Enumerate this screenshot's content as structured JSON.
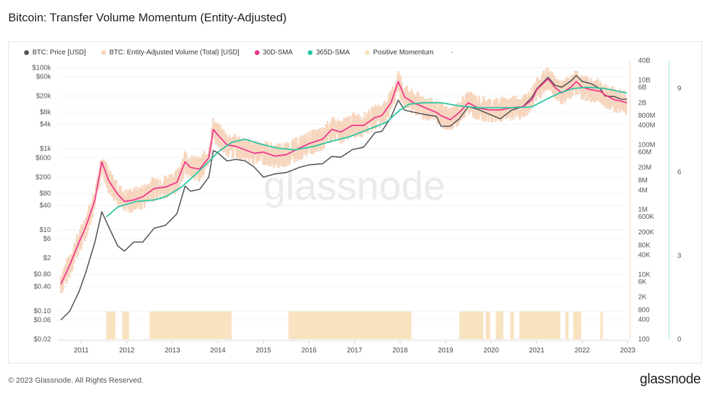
{
  "header": {
    "title": "Bitcoin: Transfer Volume Momentum (Entity-Adjusted)"
  },
  "footer": {
    "copyright": "© 2023 Glassnode. All Rights Reserved.",
    "brand": "glassnode"
  },
  "chart_data": {
    "type": "line",
    "title": "Bitcoin: Transfer Volume Momentum (Entity-Adjusted)",
    "watermark": "glassnode",
    "legend": {
      "placement": "top-left",
      "items": [
        {
          "label": "BTC: Price [USD]",
          "color": "#555555"
        },
        {
          "label": "BTC: Entity-Adjusted Volume (Total) [USD]",
          "color": "#f6d2b8"
        },
        {
          "label": "30D-SMA",
          "color": "#f0358c"
        },
        {
          "label": "365D-SMA",
          "color": "#26c6a2"
        },
        {
          "label": "Positive Momentum",
          "color": "#f8e2c0"
        }
      ],
      "extra": "-"
    },
    "x_axis": {
      "ticks": [
        "2011",
        "2012",
        "2013",
        "2014",
        "2015",
        "2016",
        "2017",
        "2018",
        "2019",
        "2020",
        "2021",
        "2022",
        "2023"
      ],
      "range": [
        2010.5,
        2023.0
      ]
    },
    "y_left": {
      "scale": "log",
      "unit": "USD",
      "range": [
        0.02,
        150000
      ],
      "ticks": [
        {
          "v": 100000,
          "label": "$100k"
        },
        {
          "v": 60000,
          "label": "$60k"
        },
        {
          "v": 20000,
          "label": "$20k"
        },
        {
          "v": 8000,
          "label": "$8k"
        },
        {
          "v": 4000,
          "label": "$4k"
        },
        {
          "v": 1000,
          "label": "$1k"
        },
        {
          "v": 600,
          "label": "$600"
        },
        {
          "v": 200,
          "label": "$200"
        },
        {
          "v": 80,
          "label": "$80"
        },
        {
          "v": 40,
          "label": "$40"
        },
        {
          "v": 10,
          "label": "$10"
        },
        {
          "v": 6,
          "label": "$6"
        },
        {
          "v": 2,
          "label": "$2"
        },
        {
          "v": 0.8,
          "label": "$0.80"
        },
        {
          "v": 0.4,
          "label": "$0.40"
        },
        {
          "v": 0.1,
          "label": "$0.10"
        },
        {
          "v": 0.06,
          "label": "$0.06"
        },
        {
          "v": 0.02,
          "label": "$0.02"
        }
      ]
    },
    "y_right": {
      "scale": "log",
      "unit": "USD",
      "range": [
        100,
        40000000000
      ],
      "ticks": [
        {
          "v": 40000000000,
          "label": "40B"
        },
        {
          "v": 10000000000,
          "label": "10B"
        },
        {
          "v": 6000000000,
          "label": "6B"
        },
        {
          "v": 2000000000,
          "label": "2B"
        },
        {
          "v": 800000000,
          "label": "800M"
        },
        {
          "v": 400000000,
          "label": "400M"
        },
        {
          "v": 100000000,
          "label": "100M"
        },
        {
          "v": 60000000,
          "label": "60M"
        },
        {
          "v": 20000000,
          "label": "20M"
        },
        {
          "v": 8000000,
          "label": "8M"
        },
        {
          "v": 4000000,
          "label": "4M"
        },
        {
          "v": 1000000,
          "label": "1M"
        },
        {
          "v": 600000,
          "label": "600K"
        },
        {
          "v": 200000,
          "label": "200K"
        },
        {
          "v": 80000,
          "label": "80K"
        },
        {
          "v": 40000,
          "label": "40K"
        },
        {
          "v": 10000,
          "label": "10K"
        },
        {
          "v": 6000,
          "label": "6K"
        },
        {
          "v": 2000,
          "label": "2K"
        },
        {
          "v": 800,
          "label": "800"
        },
        {
          "v": 400,
          "label": "400"
        },
        {
          "v": 100,
          "label": "100"
        }
      ]
    },
    "y_momentum": {
      "scale": "linear",
      "range": [
        0,
        10
      ],
      "ticks": [
        {
          "v": 9,
          "label": "9"
        },
        {
          "v": 6,
          "label": "6"
        },
        {
          "v": 3,
          "label": "3"
        },
        {
          "v": 0,
          "label": "0"
        }
      ]
    },
    "series": [
      {
        "name": "BTC: Price [USD]",
        "axis": "left",
        "color": "#555555",
        "points": [
          [
            2010.55,
            0.06
          ],
          [
            2010.75,
            0.1
          ],
          [
            2010.95,
            0.3
          ],
          [
            2011.1,
            0.9
          ],
          [
            2011.3,
            5
          ],
          [
            2011.45,
            28
          ],
          [
            2011.6,
            12
          ],
          [
            2011.8,
            4
          ],
          [
            2011.95,
            3
          ],
          [
            2012.15,
            5
          ],
          [
            2012.35,
            5
          ],
          [
            2012.6,
            11
          ],
          [
            2012.85,
            13
          ],
          [
            2013.1,
            25
          ],
          [
            2013.28,
            120
          ],
          [
            2013.4,
            90
          ],
          [
            2013.6,
            100
          ],
          [
            2013.8,
            200
          ],
          [
            2013.9,
            900
          ],
          [
            2014.0,
            800
          ],
          [
            2014.2,
            500
          ],
          [
            2014.4,
            550
          ],
          [
            2014.6,
            500
          ],
          [
            2014.8,
            350
          ],
          [
            2015.0,
            200
          ],
          [
            2015.25,
            240
          ],
          [
            2015.5,
            260
          ],
          [
            2015.8,
            350
          ],
          [
            2016.0,
            400
          ],
          [
            2016.3,
            430
          ],
          [
            2016.5,
            650
          ],
          [
            2016.7,
            620
          ],
          [
            2016.95,
            950
          ],
          [
            2017.2,
            1100
          ],
          [
            2017.45,
            2500
          ],
          [
            2017.6,
            2700
          ],
          [
            2017.8,
            6000
          ],
          [
            2017.96,
            16000
          ],
          [
            2018.1,
            9000
          ],
          [
            2018.3,
            8000
          ],
          [
            2018.55,
            7000
          ],
          [
            2018.8,
            6300
          ],
          [
            2018.9,
            3600
          ],
          [
            2019.1,
            3600
          ],
          [
            2019.3,
            5500
          ],
          [
            2019.5,
            11000
          ],
          [
            2019.7,
            9500
          ],
          [
            2019.95,
            7200
          ],
          [
            2020.2,
            5500
          ],
          [
            2020.45,
            9000
          ],
          [
            2020.7,
            11000
          ],
          [
            2020.9,
            19000
          ],
          [
            2021.0,
            30000
          ],
          [
            2021.25,
            58000
          ],
          [
            2021.4,
            37000
          ],
          [
            2021.55,
            33000
          ],
          [
            2021.75,
            47000
          ],
          [
            2021.87,
            64000
          ],
          [
            2022.0,
            46000
          ],
          [
            2022.2,
            40000
          ],
          [
            2022.4,
            30000
          ],
          [
            2022.5,
            20000
          ],
          [
            2022.7,
            19500
          ],
          [
            2022.87,
            16500
          ],
          [
            2022.98,
            16800
          ]
        ]
      },
      {
        "name": "30D-SMA",
        "axis": "right",
        "color": "#f0358c",
        "points": [
          [
            2010.55,
            5000
          ],
          [
            2010.75,
            20000
          ],
          [
            2010.95,
            100000
          ],
          [
            2011.1,
            300000
          ],
          [
            2011.3,
            2000000
          ],
          [
            2011.45,
            30000000
          ],
          [
            2011.6,
            8000000
          ],
          [
            2011.8,
            3000000
          ],
          [
            2011.95,
            1800000
          ],
          [
            2012.15,
            2000000
          ],
          [
            2012.35,
            2500000
          ],
          [
            2012.6,
            4500000
          ],
          [
            2012.85,
            5000000
          ],
          [
            2013.1,
            7000000
          ],
          [
            2013.28,
            30000000
          ],
          [
            2013.4,
            20000000
          ],
          [
            2013.6,
            18000000
          ],
          [
            2013.8,
            40000000
          ],
          [
            2013.9,
            300000000
          ],
          [
            2014.0,
            200000000
          ],
          [
            2014.2,
            100000000
          ],
          [
            2014.4,
            90000000
          ],
          [
            2014.6,
            70000000
          ],
          [
            2014.8,
            55000000
          ],
          [
            2015.0,
            60000000
          ],
          [
            2015.25,
            45000000
          ],
          [
            2015.5,
            50000000
          ],
          [
            2015.8,
            80000000
          ],
          [
            2016.0,
            110000000
          ],
          [
            2016.3,
            150000000
          ],
          [
            2016.5,
            300000000
          ],
          [
            2016.7,
            250000000
          ],
          [
            2016.95,
            400000000
          ],
          [
            2017.2,
            400000000
          ],
          [
            2017.45,
            700000000
          ],
          [
            2017.6,
            800000000
          ],
          [
            2017.8,
            2000000000
          ],
          [
            2017.96,
            9000000000
          ],
          [
            2018.1,
            3000000000
          ],
          [
            2018.3,
            2000000000
          ],
          [
            2018.55,
            1400000000
          ],
          [
            2018.8,
            1000000000
          ],
          [
            2018.9,
            800000000
          ],
          [
            2019.1,
            600000000
          ],
          [
            2019.3,
            1000000000
          ],
          [
            2019.5,
            2000000000
          ],
          [
            2019.7,
            1400000000
          ],
          [
            2019.95,
            1200000000
          ],
          [
            2020.2,
            1200000000
          ],
          [
            2020.45,
            1400000000
          ],
          [
            2020.7,
            1500000000
          ],
          [
            2020.9,
            2500000000
          ],
          [
            2021.0,
            5000000000
          ],
          [
            2021.25,
            11000000000
          ],
          [
            2021.4,
            6000000000
          ],
          [
            2021.55,
            4000000000
          ],
          [
            2021.75,
            6000000000
          ],
          [
            2021.87,
            9000000000
          ],
          [
            2022.0,
            6000000000
          ],
          [
            2022.2,
            5000000000
          ],
          [
            2022.4,
            4500000000
          ],
          [
            2022.5,
            3500000000
          ],
          [
            2022.7,
            2500000000
          ],
          [
            2022.87,
            2200000000
          ],
          [
            2022.98,
            2000000000
          ]
        ]
      },
      {
        "name": "365D-SMA",
        "axis": "right",
        "color": "#26c6a2",
        "points": [
          [
            2011.55,
            600000
          ],
          [
            2011.8,
            1200000
          ],
          [
            2012.2,
            1800000
          ],
          [
            2012.6,
            2000000
          ],
          [
            2012.85,
            2500000
          ],
          [
            2013.2,
            5000000
          ],
          [
            2013.5,
            12000000
          ],
          [
            2013.8,
            30000000
          ],
          [
            2014.0,
            60000000
          ],
          [
            2014.3,
            120000000
          ],
          [
            2014.6,
            150000000
          ],
          [
            2014.9,
            110000000
          ],
          [
            2015.3,
            80000000
          ],
          [
            2015.7,
            70000000
          ],
          [
            2016.1,
            90000000
          ],
          [
            2016.5,
            130000000
          ],
          [
            2016.9,
            180000000
          ],
          [
            2017.3,
            300000000
          ],
          [
            2017.7,
            500000000
          ],
          [
            2018.0,
            1200000000
          ],
          [
            2018.2,
            1800000000
          ],
          [
            2018.5,
            2000000000
          ],
          [
            2018.9,
            2000000000
          ],
          [
            2019.3,
            1600000000
          ],
          [
            2019.7,
            1400000000
          ],
          [
            2020.1,
            1400000000
          ],
          [
            2020.5,
            1400000000
          ],
          [
            2020.9,
            1500000000
          ],
          [
            2021.2,
            2500000000
          ],
          [
            2021.5,
            4000000000
          ],
          [
            2021.8,
            5500000000
          ],
          [
            2022.1,
            6000000000
          ],
          [
            2022.5,
            5500000000
          ],
          [
            2022.8,
            4500000000
          ],
          [
            2022.98,
            4000000000
          ]
        ]
      }
    ],
    "volume_band": {
      "name": "BTC: Entity-Adjusted Volume (Total) [USD]",
      "axis": "right",
      "color": "#f6d2b8",
      "spread_factor": 2.5
    },
    "momentum_periods": {
      "name": "Positive Momentum",
      "axis": "momentum",
      "value": 1,
      "color": "#f8e2c0",
      "ranges": [
        [
          2011.55,
          2011.75
        ],
        [
          2011.9,
          2012.05
        ],
        [
          2012.5,
          2014.3
        ],
        [
          2015.55,
          2018.25
        ],
        [
          2019.3,
          2019.83
        ],
        [
          2019.88,
          2019.98
        ],
        [
          2020.1,
          2020.27
        ],
        [
          2020.42,
          2020.5
        ],
        [
          2020.62,
          2021.52
        ],
        [
          2021.63,
          2021.7
        ],
        [
          2021.8,
          2021.98
        ],
        [
          2022.4,
          2022.45
        ]
      ]
    }
  }
}
